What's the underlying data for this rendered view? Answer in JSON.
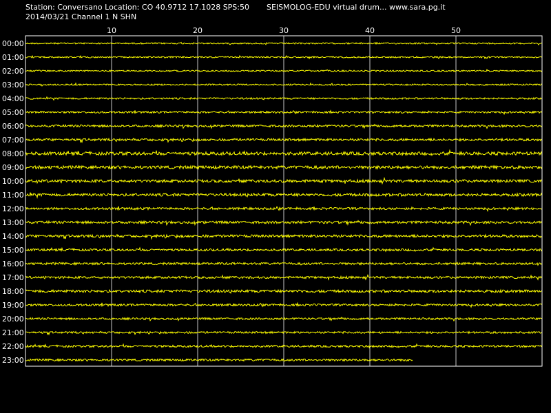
{
  "header": {
    "station_line": "Station: Conversano Location: CO 40.9712 17.1028 SPS:50",
    "date_line": "2014/03/21  Channel 1 N SHN",
    "product_line": "SEISMOLOG-EDU virtual drum... www.sara.pg.it"
  },
  "colors": {
    "background": "#000000",
    "trace": "#ffff00",
    "text": "#ffffff",
    "grid": "#c8c8c8"
  },
  "chart_data": {
    "type": "line",
    "title": "",
    "xlabel": "",
    "ylabel": "",
    "xlim": [
      0,
      60
    ],
    "x_ticks": [
      10,
      20,
      30,
      40,
      50
    ],
    "grid": "vertical-only",
    "rows": [
      {
        "label": "00:00",
        "end_minute": 60,
        "amplitude": 1.0
      },
      {
        "label": "01:00",
        "end_minute": 60,
        "amplitude": 1.0
      },
      {
        "label": "02:00",
        "end_minute": 60,
        "amplitude": 1.0
      },
      {
        "label": "03:00",
        "end_minute": 60,
        "amplitude": 1.0
      },
      {
        "label": "04:00",
        "end_minute": 60,
        "amplitude": 1.2
      },
      {
        "label": "05:00",
        "end_minute": 60,
        "amplitude": 1.3
      },
      {
        "label": "06:00",
        "end_minute": 60,
        "amplitude": 1.6
      },
      {
        "label": "07:00",
        "end_minute": 60,
        "amplitude": 1.7
      },
      {
        "label": "08:00",
        "end_minute": 60,
        "amplitude": 2.3
      },
      {
        "label": "09:00",
        "end_minute": 60,
        "amplitude": 2.2
      },
      {
        "label": "10:00",
        "end_minute": 60,
        "amplitude": 2.0
      },
      {
        "label": "11:00",
        "end_minute": 60,
        "amplitude": 2.0
      },
      {
        "label": "12:00",
        "end_minute": 60,
        "amplitude": 1.6
      },
      {
        "label": "13:00",
        "end_minute": 60,
        "amplitude": 1.8
      },
      {
        "label": "14:00",
        "end_minute": 60,
        "amplitude": 1.9
      },
      {
        "label": "15:00",
        "end_minute": 60,
        "amplitude": 1.6
      },
      {
        "label": "16:00",
        "end_minute": 60,
        "amplitude": 1.6
      },
      {
        "label": "17:00",
        "end_minute": 60,
        "amplitude": 1.6
      },
      {
        "label": "18:00",
        "end_minute": 60,
        "amplitude": 1.9
      },
      {
        "label": "19:00",
        "end_minute": 60,
        "amplitude": 1.5
      },
      {
        "label": "20:00",
        "end_minute": 60,
        "amplitude": 1.4
      },
      {
        "label": "21:00",
        "end_minute": 60,
        "amplitude": 1.4
      },
      {
        "label": "22:00",
        "end_minute": 60,
        "amplitude": 1.5
      },
      {
        "label": "23:00",
        "end_minute": 45,
        "amplitude": 1.5
      }
    ]
  }
}
